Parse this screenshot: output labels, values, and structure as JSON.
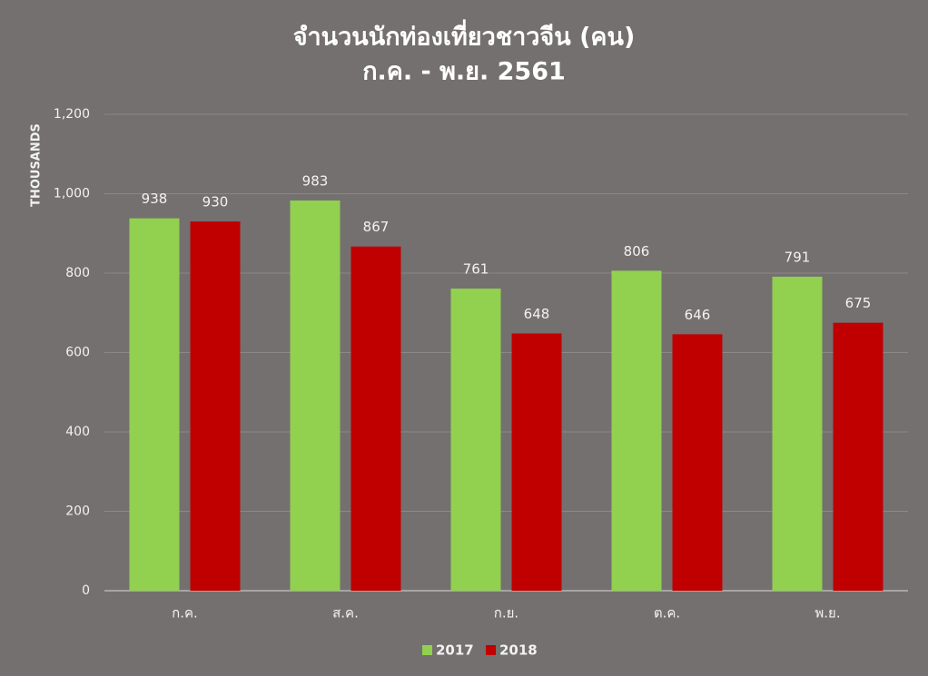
{
  "chart_data": {
    "type": "bar",
    "title": "จำนวนนักท่องเที่ยวชาวจีน (คน)",
    "subtitle": "ก.ค. - พ.ย. 2561",
    "y_label": "THOUSANDS",
    "categories": [
      "ก.ค.",
      "ส.ค.",
      "ก.ย.",
      "ต.ค.",
      "พ.ย."
    ],
    "series": [
      {
        "name": "2017",
        "color": "#92d050",
        "values": [
          938,
          983,
          761,
          806,
          791
        ]
      },
      {
        "name": "2018",
        "color": "#c00000",
        "values": [
          930,
          867,
          648,
          646,
          675
        ]
      }
    ],
    "ylim": [
      0,
      1200
    ],
    "yticks": [
      0,
      200,
      400,
      600,
      800,
      {
        "value": 1000,
        "label": "1,000"
      },
      {
        "value": 1200,
        "label": "1,200"
      }
    ],
    "grid": true,
    "legend": "bottom"
  }
}
